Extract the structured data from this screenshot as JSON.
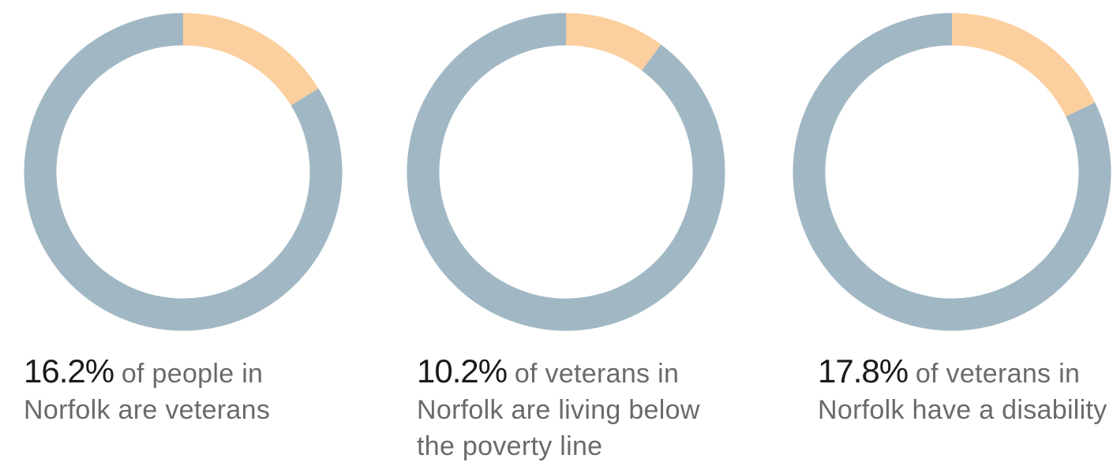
{
  "chart_data": [
    {
      "type": "pie",
      "style": "donut",
      "values": [
        16.2,
        83.8
      ],
      "colors": [
        "#fbcf9e",
        "#a1b8c4"
      ],
      "stat": "16.2%",
      "caption_before_break": "of people in",
      "caption_rest": "Norfolk are veterans"
    },
    {
      "type": "pie",
      "style": "donut",
      "values": [
        10.2,
        89.8
      ],
      "colors": [
        "#fbcf9e",
        "#a1b8c4"
      ],
      "stat": "10.2%",
      "caption_before_break": "of veterans in",
      "caption_rest": "Norfolk are living below the poverty line"
    },
    {
      "type": "pie",
      "style": "donut",
      "values": [
        17.8,
        82.2
      ],
      "colors": [
        "#fbcf9e",
        "#a1b8c4"
      ],
      "stat": "17.8%",
      "caption_before_break": "of veterans in",
      "caption_rest": "Norfolk have a disability"
    }
  ]
}
